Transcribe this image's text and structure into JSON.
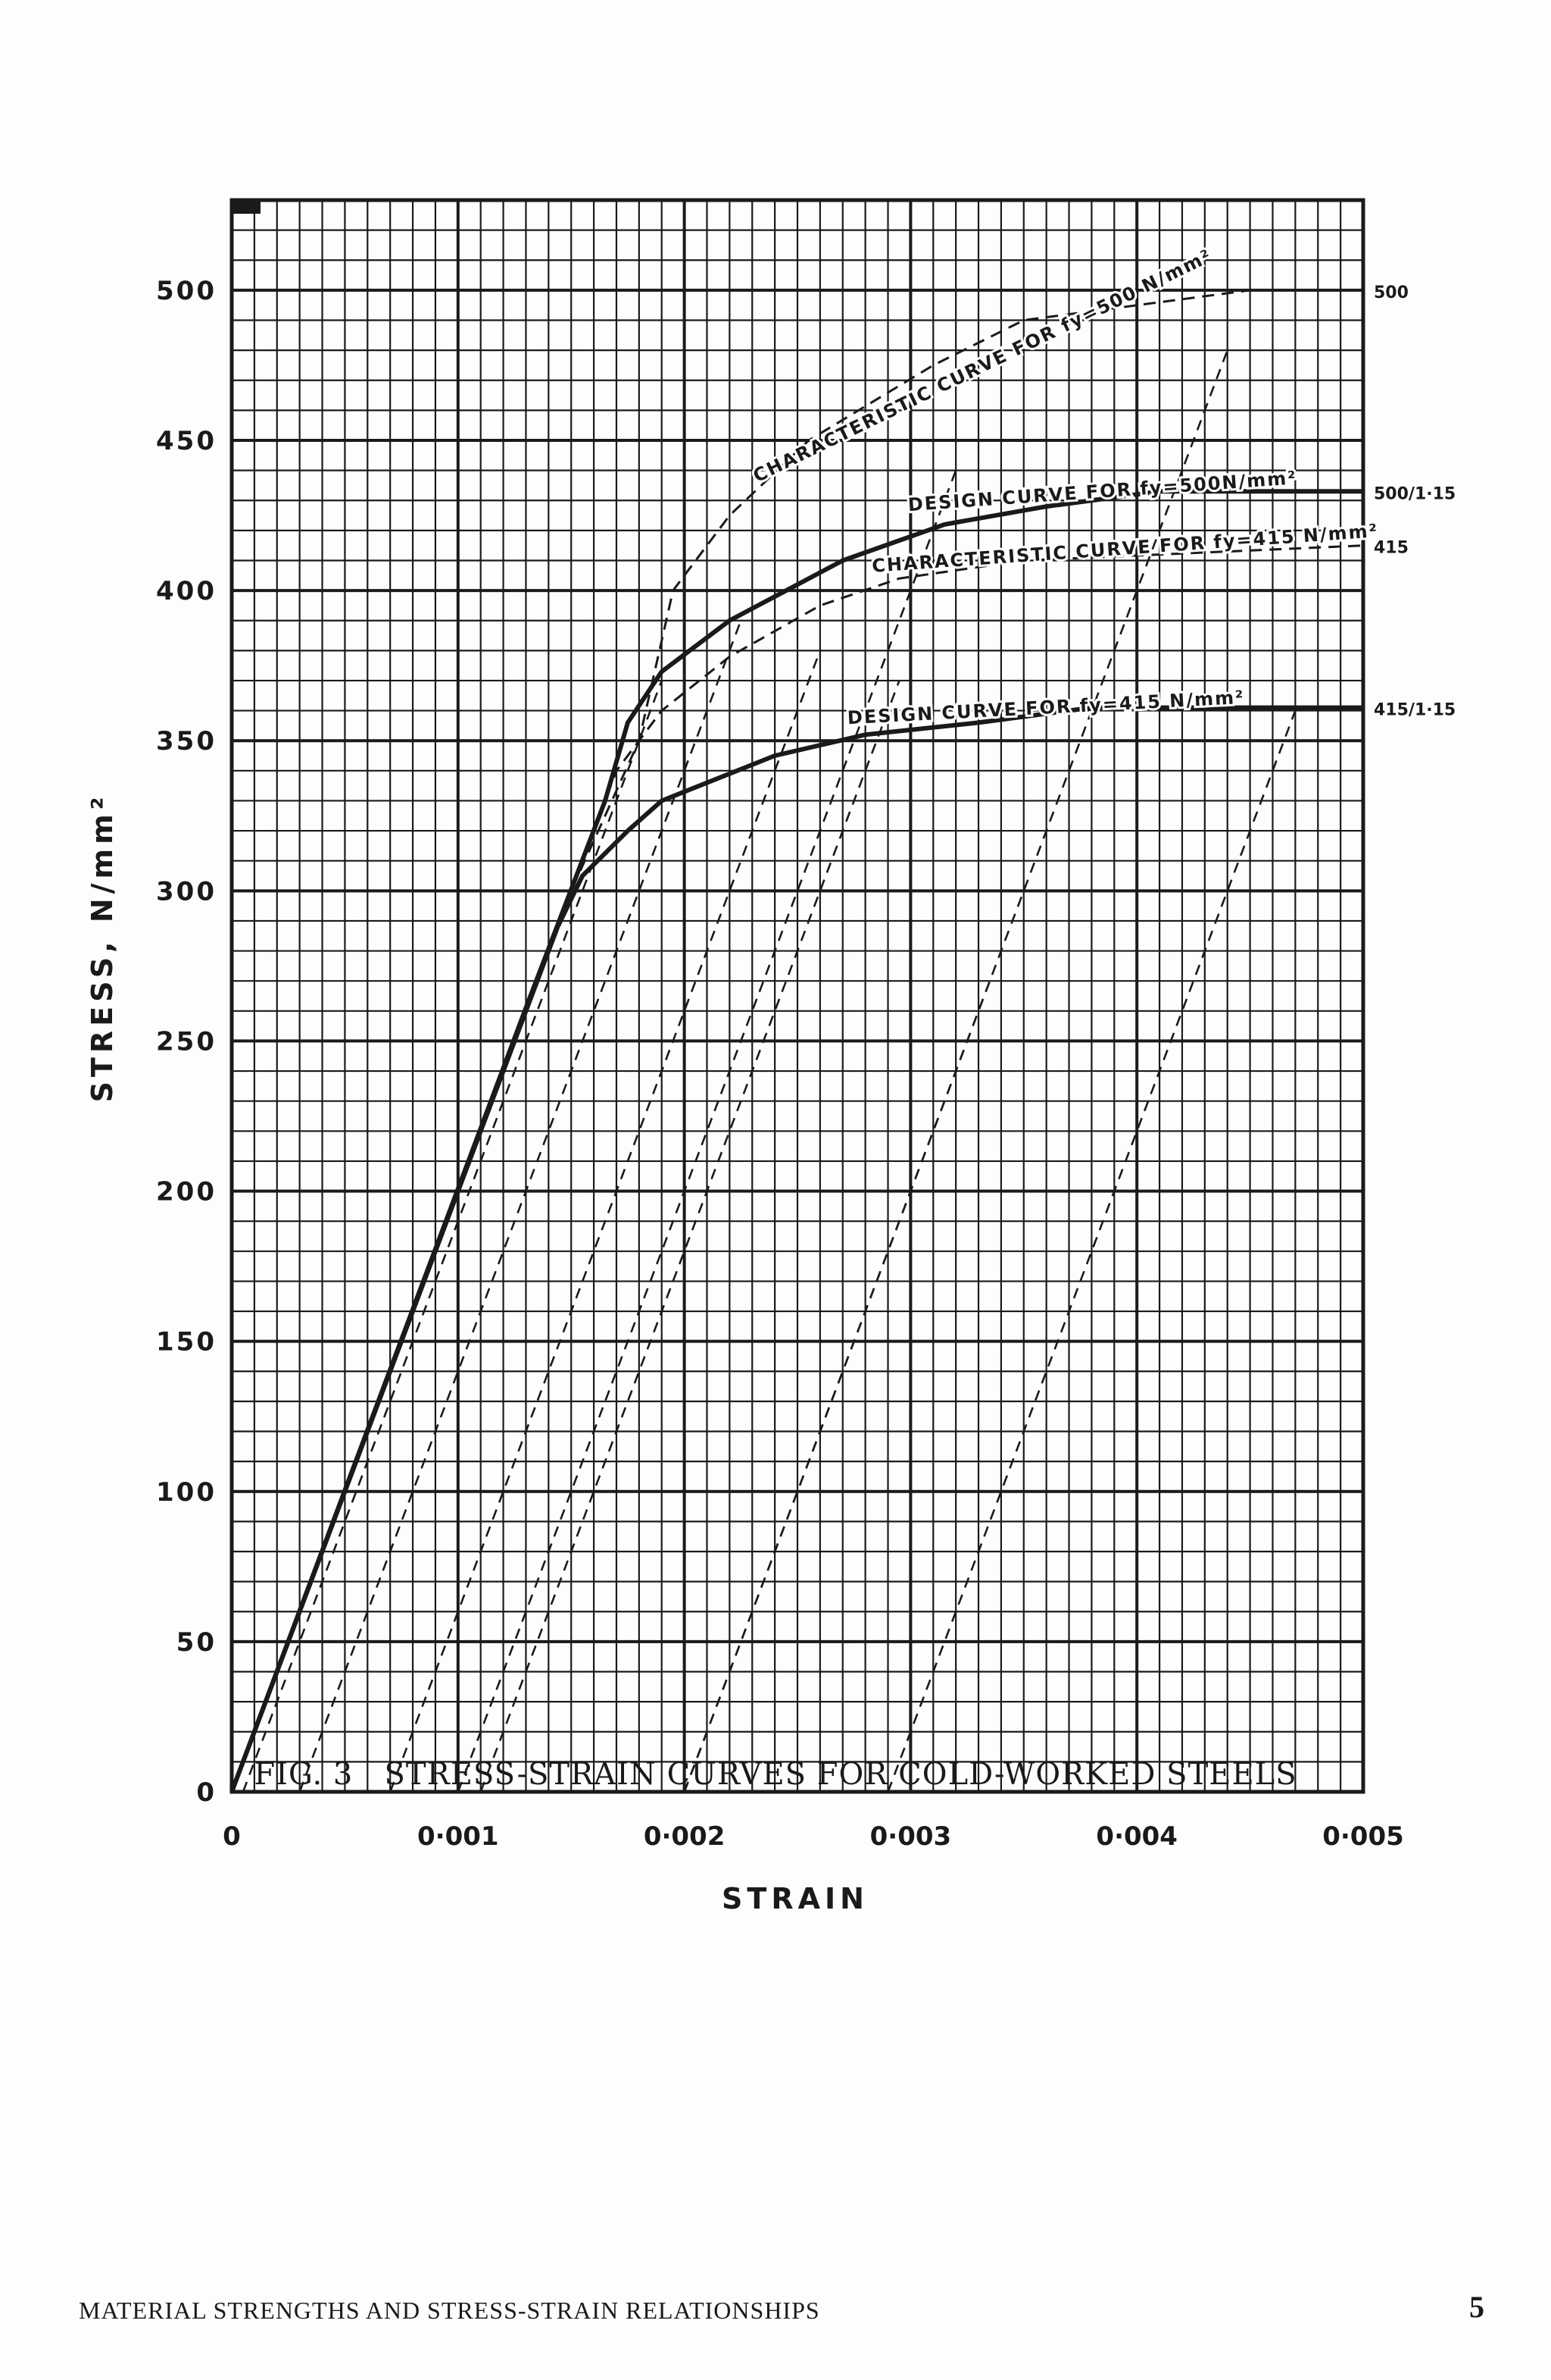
{
  "figure": {
    "label": "FIG. 3",
    "caption": "STRESS-STRAIN CURVES FOR COLD-WORKED STEELS"
  },
  "footer": {
    "running_head": "MATERIAL STRENGTHS AND STRESS-STRAIN RELATIONSHIPS",
    "page_number": "5"
  },
  "colors": {
    "ink": "#1a1a1a",
    "paper": "#fdfdfc"
  },
  "chart_data": {
    "type": "line",
    "title": "",
    "xlabel": "STRAIN",
    "ylabel": "STRESS, N/mm²",
    "xlim": [
      0,
      0.005
    ],
    "ylim": [
      0,
      530
    ],
    "grid": true,
    "x_ticks": [
      0,
      0.001,
      0.002,
      0.003,
      0.004,
      0.005
    ],
    "x_tick_labels": [
      "0",
      "0·001",
      "0·002",
      "0·003",
      "0·004",
      "0·005"
    ],
    "y_ticks": [
      0,
      50,
      100,
      150,
      200,
      250,
      300,
      350,
      400,
      450,
      500
    ],
    "y_tick_labels": [
      "0",
      "50",
      "100",
      "150",
      "200",
      "250",
      "300",
      "350",
      "400",
      "450",
      "500"
    ],
    "series": [
      {
        "name": "CHARACTERISTIC CURVE FOR fy=500 N/mm²",
        "style": "dashed",
        "end_label": "500",
        "x": [
          0,
          0.0015,
          0.0018,
          0.00195,
          0.0022,
          0.00255,
          0.0031,
          0.0035,
          0.0045,
          0.005
        ],
        "y": [
          0,
          300,
          350,
          400,
          425,
          450,
          475,
          490,
          500,
          500
        ]
      },
      {
        "name": "DESIGN CURVE FOR fy=500N/mm²",
        "style": "solid",
        "end_label": "500/1·15",
        "x": [
          0,
          0.0013,
          0.00165,
          0.00175,
          0.0019,
          0.0022,
          0.0027,
          0.00315,
          0.0036,
          0.0041,
          0.005
        ],
        "y": [
          0,
          261,
          330,
          356,
          373,
          390,
          410,
          422,
          428,
          433,
          433
        ]
      },
      {
        "name": "CHARACTERISTIC CURVE FOR fy=415 N/mm²",
        "style": "dashed",
        "end_label": "415",
        "x": [
          0,
          0.0015,
          0.0017,
          0.0019,
          0.0022,
          0.0026,
          0.00295,
          0.0035,
          0.005
        ],
        "y": [
          0,
          300,
          340,
          360,
          378,
          395,
          404,
          410,
          415
        ]
      },
      {
        "name": "DESIGN CURVE FOR fy=415 N/mm²",
        "style": "solid",
        "end_label": "415/1·15",
        "x": [
          0,
          0.00144,
          0.00155,
          0.00175,
          0.0019,
          0.0024,
          0.0028,
          0.0033,
          0.0038,
          0.005
        ],
        "y": [
          0,
          288,
          305,
          320,
          330,
          345,
          352,
          356,
          361,
          361
        ]
      }
    ],
    "offset_lines": {
      "style": "dashed",
      "description": "Parallel elastic unloading lines (modulus 200000 N/mm²) from points on the characteristic curves",
      "segments": [
        {
          "x": [
            5e-05,
            0.0019
          ],
          "y": [
            0,
            370
          ]
        },
        {
          "x": [
            0.0003,
            0.00225
          ],
          "y": [
            0,
            390
          ]
        },
        {
          "x": [
            0.0007,
            0.0026
          ],
          "y": [
            0,
            380
          ]
        },
        {
          "x": [
            0.001,
            0.0032
          ],
          "y": [
            0,
            440
          ]
        },
        {
          "x": [
            0.0011,
            0.00295
          ],
          "y": [
            0,
            370
          ]
        },
        {
          "x": [
            0.002,
            0.0044
          ],
          "y": [
            0,
            480
          ]
        },
        {
          "x": [
            0.002,
            0.00335
          ],
          "y": [
            0,
            270
          ]
        },
        {
          "x": [
            0.0029,
            0.0047
          ],
          "y": [
            0,
            360
          ]
        }
      ]
    },
    "curve_labels": [
      {
        "text": "CHARACTERISTIC CURVE FOR fy=500 N/mm²",
        "x": 0.00333,
        "y": 473,
        "rotate": -26
      },
      {
        "text": "DESIGN CURVE FOR fy=500N/mm²",
        "x": 0.00385,
        "y": 431,
        "rotate": -4
      },
      {
        "text": "CHARACTERISTIC CURVE FOR fy=415 N/mm²",
        "x": 0.00395,
        "y": 412,
        "rotate": -4
      },
      {
        "text": "DESIGN CURVE FOR fy=415 N/mm²",
        "x": 0.0036,
        "y": 359,
        "rotate": -3
      }
    ]
  }
}
